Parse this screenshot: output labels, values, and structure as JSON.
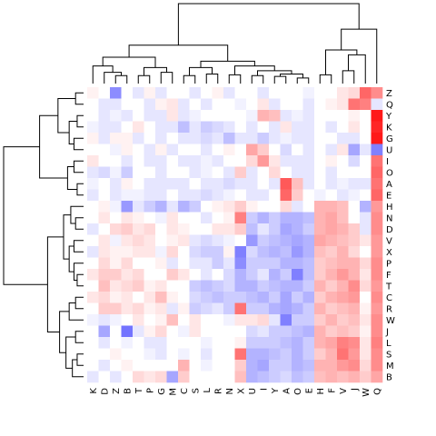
{
  "chart_data": {
    "type": "heatmap",
    "title": "",
    "xlabel": "",
    "ylabel": "",
    "column_labels": [
      "K",
      "D",
      "Z",
      "B",
      "T",
      "P",
      "G",
      "M",
      "C",
      "S",
      "L",
      "R",
      "N",
      "X",
      "U",
      "I",
      "Y",
      "A",
      "O",
      "E",
      "H",
      "F",
      "V",
      "J",
      "W",
      "Q"
    ],
    "row_labels": [
      "Z",
      "Q",
      "Y",
      "K",
      "G",
      "U",
      "I",
      "O",
      "A",
      "E",
      "H",
      "N",
      "D",
      "V",
      "X",
      "P",
      "F",
      "T",
      "C",
      "R",
      "W",
      "J",
      "L",
      "S",
      "M",
      "B"
    ],
    "color_scale": {
      "low": "#0000ff",
      "mid": "#ffffff",
      "high": "#ff0000",
      "range": [
        -1,
        1
      ]
    },
    "legend": "none",
    "dendrogram_columns": true,
    "dendrogram_rows": true,
    "values": [
      [
        0.05,
        0.0,
        -0.45,
        0.0,
        -0.1,
        0.05,
        -0.1,
        0.0,
        0.0,
        -0.1,
        0.0,
        0.05,
        -0.1,
        0.0,
        0.0,
        -0.1,
        0.0,
        0.0,
        0.0,
        -0.05,
        0.0,
        0.0,
        0.1,
        0.15,
        0.6,
        0.45
      ],
      [
        0.0,
        -0.1,
        -0.1,
        0.0,
        0.0,
        -0.1,
        0.05,
        0.1,
        -0.1,
        0.0,
        -0.1,
        0.0,
        0.0,
        -0.05,
        0.0,
        0.1,
        -0.1,
        0.0,
        0.0,
        -0.1,
        0.0,
        0.05,
        0.1,
        0.55,
        0.5,
        -0.1
      ],
      [
        0.0,
        -0.1,
        -0.05,
        -0.1,
        0.0,
        -0.1,
        -0.1,
        0.1,
        -0.1,
        -0.05,
        0.0,
        0.0,
        0.0,
        0.0,
        -0.05,
        0.3,
        0.25,
        -0.1,
        -0.05,
        -0.1,
        0.0,
        0.0,
        0.0,
        0.05,
        0.0,
        0.9
      ],
      [
        -0.05,
        -0.1,
        -0.1,
        0.0,
        0.1,
        0.0,
        -0.1,
        -0.1,
        -0.25,
        -0.1,
        -0.2,
        -0.15,
        -0.1,
        0.0,
        -0.1,
        0.0,
        -0.1,
        0.1,
        -0.1,
        -0.1,
        0.0,
        -0.1,
        0.0,
        0.1,
        0.0,
        0.85
      ],
      [
        0.05,
        -0.1,
        0.05,
        0.05,
        -0.1,
        0.0,
        -0.1,
        0.0,
        -0.1,
        -0.1,
        -0.15,
        -0.1,
        -0.25,
        -0.1,
        -0.1,
        -0.2,
        -0.1,
        -0.05,
        -0.1,
        -0.1,
        0.0,
        0.0,
        -0.1,
        -0.1,
        0.0,
        0.9
      ],
      [
        0.0,
        0.0,
        -0.05,
        0.05,
        0.0,
        -0.1,
        0.05,
        -0.1,
        0.0,
        0.0,
        -0.1,
        0.0,
        0.05,
        0.0,
        0.35,
        0.2,
        0.0,
        -0.15,
        0.0,
        -0.1,
        0.0,
        -0.1,
        0.1,
        -0.35,
        -0.1,
        -0.5
      ],
      [
        0.1,
        0.0,
        0.0,
        -0.1,
        0.0,
        -0.1,
        -0.1,
        0.0,
        -0.1,
        -0.1,
        -0.05,
        -0.1,
        0.0,
        0.0,
        0.15,
        0.4,
        0.1,
        -0.1,
        -0.1,
        -0.1,
        0.0,
        0.05,
        0.0,
        -0.15,
        0.0,
        0.55
      ],
      [
        -0.1,
        -0.15,
        -0.05,
        -0.2,
        0.0,
        0.0,
        -0.1,
        0.0,
        0.0,
        -0.1,
        -0.05,
        0.0,
        -0.1,
        0.2,
        -0.1,
        0.0,
        0.15,
        0.0,
        -0.1,
        -0.1,
        0.0,
        -0.1,
        0.0,
        0.0,
        0.0,
        0.6
      ],
      [
        -0.05,
        0.0,
        -0.1,
        0.05,
        0.0,
        -0.1,
        -0.1,
        -0.1,
        -0.1,
        0.0,
        -0.1,
        -0.1,
        -0.15,
        -0.1,
        -0.1,
        0.0,
        -0.1,
        0.65,
        0.25,
        -0.1,
        0.0,
        -0.1,
        -0.05,
        -0.1,
        -0.1,
        0.55
      ],
      [
        -0.1,
        0.0,
        -0.1,
        -0.05,
        -0.05,
        -0.1,
        -0.1,
        0.0,
        -0.1,
        -0.1,
        -0.15,
        -0.1,
        -0.05,
        0.0,
        -0.1,
        -0.1,
        0.0,
        0.6,
        0.2,
        0.0,
        -0.05,
        0.0,
        -0.1,
        -0.05,
        0.0,
        0.6
      ],
      [
        0.0,
        0.05,
        -0.05,
        -0.4,
        -0.1,
        -0.2,
        -0.3,
        -0.1,
        -0.3,
        -0.2,
        0.0,
        0.05,
        0.1,
        0.2,
        0.05,
        0.0,
        0.0,
        0.15,
        -0.1,
        0.0,
        0.3,
        0.3,
        0.25,
        0.0,
        -0.3,
        0.4
      ],
      [
        0.0,
        0.1,
        0.0,
        0.1,
        0.05,
        0.0,
        -0.05,
        0.1,
        0.0,
        0.0,
        -0.1,
        0.0,
        0.05,
        0.5,
        -0.2,
        -0.3,
        -0.2,
        -0.3,
        -0.3,
        -0.25,
        0.3,
        0.35,
        0.25,
        0.0,
        -0.1,
        0.45
      ],
      [
        -0.1,
        0.0,
        0.15,
        0.2,
        0.1,
        0.15,
        0.0,
        0.1,
        0.05,
        0.0,
        0.0,
        0.1,
        0.1,
        0.2,
        -0.25,
        -0.1,
        -0.2,
        -0.35,
        -0.3,
        -0.2,
        0.3,
        0.35,
        0.3,
        0.2,
        -0.1,
        0.45
      ],
      [
        0.0,
        0.1,
        -0.05,
        0.1,
        0.15,
        0.1,
        0.0,
        0.05,
        0.1,
        -0.1,
        -0.15,
        -0.1,
        -0.05,
        0.0,
        -0.4,
        -0.2,
        -0.25,
        -0.3,
        -0.35,
        -0.3,
        0.35,
        0.3,
        0.25,
        0.2,
        0.1,
        0.4
      ],
      [
        -0.1,
        0.1,
        0.05,
        0.05,
        0.1,
        0.1,
        -0.05,
        0.15,
        0.0,
        -0.15,
        -0.2,
        -0.2,
        0.05,
        -0.5,
        -0.15,
        -0.25,
        -0.3,
        -0.25,
        -0.4,
        -0.3,
        0.25,
        0.2,
        0.3,
        0.15,
        0.0,
        0.4
      ],
      [
        0.0,
        0.15,
        0.05,
        0.15,
        0.0,
        0.0,
        0.05,
        -0.1,
        0.0,
        -0.1,
        -0.1,
        -0.2,
        -0.1,
        -0.45,
        -0.2,
        -0.2,
        -0.2,
        -0.3,
        -0.3,
        -0.25,
        0.2,
        0.25,
        0.3,
        0.3,
        0.15,
        0.45
      ],
      [
        0.1,
        0.2,
        0.2,
        0.1,
        0.15,
        0.0,
        0.0,
        0.2,
        0.1,
        0.0,
        -0.1,
        0.0,
        -0.15,
        -0.3,
        -0.2,
        -0.1,
        -0.3,
        -0.2,
        -0.5,
        -0.25,
        0.2,
        0.3,
        0.4,
        0.3,
        0.1,
        0.45
      ],
      [
        0.0,
        0.25,
        0.1,
        0.15,
        0.2,
        0.05,
        0.1,
        0.0,
        0.0,
        -0.2,
        -0.25,
        -0.2,
        -0.15,
        -0.3,
        -0.3,
        -0.2,
        -0.25,
        -0.3,
        -0.3,
        -0.2,
        0.3,
        0.2,
        0.3,
        0.45,
        0.15,
        0.4
      ],
      [
        0.1,
        0.15,
        0.05,
        0.1,
        0.0,
        0.1,
        0.25,
        0.05,
        0.0,
        -0.15,
        -0.2,
        -0.25,
        -0.2,
        -0.2,
        -0.25,
        -0.3,
        -0.2,
        -0.35,
        -0.2,
        -0.3,
        0.2,
        0.3,
        0.35,
        0.4,
        0.0,
        0.45
      ],
      [
        0.0,
        0.2,
        0.2,
        0.1,
        0.15,
        0.05,
        0.1,
        -0.1,
        0.05,
        -0.2,
        -0.15,
        -0.1,
        -0.2,
        0.55,
        -0.2,
        -0.2,
        -0.3,
        -0.35,
        -0.3,
        -0.2,
        0.3,
        0.2,
        0.25,
        0.3,
        0.05,
        0.4
      ],
      [
        -0.05,
        -0.1,
        -0.05,
        0.0,
        0.1,
        0.0,
        0.05,
        0.25,
        0.0,
        0.1,
        0.0,
        0.0,
        -0.05,
        0.1,
        0.1,
        0.15,
        -0.1,
        -0.5,
        -0.2,
        -0.2,
        0.2,
        0.3,
        0.2,
        0.25,
        0.1,
        0.45
      ],
      [
        0.0,
        -0.35,
        0.0,
        -0.55,
        -0.1,
        0.05,
        0.15,
        0.0,
        -0.05,
        0.1,
        0.0,
        0.0,
        0.0,
        0.0,
        -0.15,
        -0.1,
        -0.2,
        -0.2,
        -0.25,
        -0.3,
        0.3,
        0.2,
        0.25,
        0.2,
        0.05,
        0.45
      ],
      [
        0.0,
        -0.1,
        0.0,
        -0.05,
        0.0,
        -0.1,
        -0.1,
        0.0,
        0.0,
        0.0,
        -0.05,
        0.0,
        0.0,
        0.05,
        -0.2,
        -0.2,
        -0.2,
        -0.25,
        -0.3,
        -0.2,
        0.3,
        0.35,
        0.5,
        0.45,
        0.1,
        0.5
      ],
      [
        0.0,
        0.0,
        0.05,
        0.0,
        0.0,
        -0.05,
        -0.1,
        0.0,
        -0.05,
        0.0,
        -0.1,
        0.0,
        0.0,
        0.55,
        -0.3,
        -0.3,
        -0.25,
        -0.2,
        -0.3,
        -0.2,
        0.2,
        0.3,
        0.55,
        0.4,
        0.1,
        0.45
      ],
      [
        0.0,
        -0.1,
        0.0,
        0.05,
        0.0,
        0.0,
        0.0,
        0.0,
        0.3,
        0.0,
        -0.05,
        0.0,
        0.0,
        0.2,
        -0.3,
        -0.35,
        -0.2,
        -0.2,
        -0.3,
        -0.25,
        0.3,
        0.3,
        0.4,
        0.45,
        0.15,
        0.45
      ],
      [
        -0.1,
        0.0,
        -0.1,
        0.0,
        0.15,
        0.1,
        0.15,
        -0.35,
        0.2,
        0.0,
        0.0,
        0.0,
        0.0,
        0.25,
        -0.3,
        -0.25,
        -0.2,
        -0.15,
        -0.25,
        -0.2,
        0.25,
        0.3,
        0.25,
        0.3,
        0.2,
        0.35
      ]
    ]
  }
}
